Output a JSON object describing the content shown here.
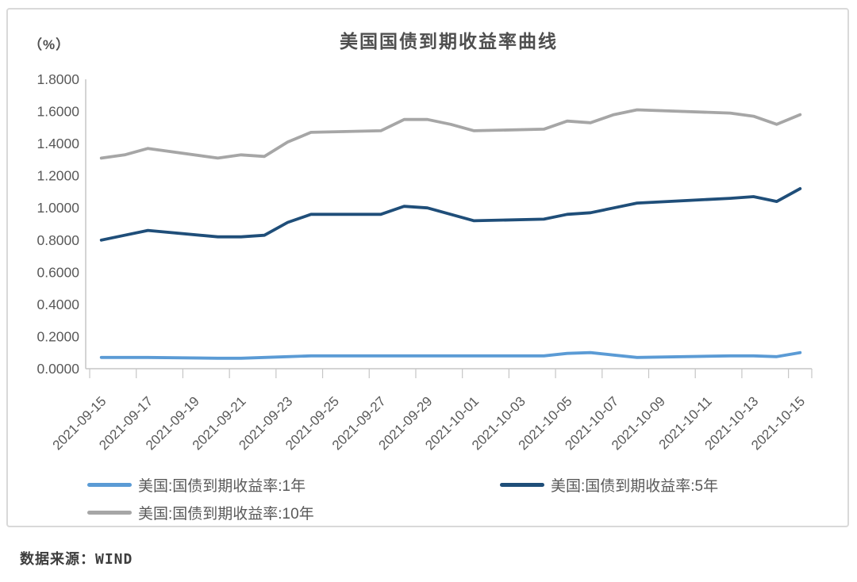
{
  "page": {
    "source_text": "数据来源：WIND"
  },
  "chart_data": {
    "type": "line",
    "title": "美国国债到期收益率曲线",
    "unit_label": "（%）",
    "grid": false,
    "legend_position": "bottom",
    "x_axis": {
      "start": "2021-09-15",
      "end": "2021-10-15",
      "tick_labels": [
        "2021-09-15",
        "2021-09-17",
        "2021-09-19",
        "2021-09-21",
        "2021-09-23",
        "2021-09-25",
        "2021-09-27",
        "2021-09-29",
        "2021-10-01",
        "2021-10-03",
        "2021-10-05",
        "2021-10-07",
        "2021-10-09",
        "2021-10-11",
        "2021-10-13",
        "2021-10-15"
      ]
    },
    "y_axis": {
      "min": 0.0,
      "max": 1.8,
      "step": 0.2,
      "tick_labels": [
        "0.0000",
        "0.2000",
        "0.4000",
        "0.6000",
        "0.8000",
        "1.0000",
        "1.2000",
        "1.4000",
        "1.6000",
        "1.8000"
      ]
    },
    "dates": [
      "2021-09-15",
      "2021-09-16",
      "2021-09-17",
      "2021-09-20",
      "2021-09-21",
      "2021-09-22",
      "2021-09-23",
      "2021-09-24",
      "2021-09-27",
      "2021-09-28",
      "2021-09-29",
      "2021-09-30",
      "2021-10-01",
      "2021-10-04",
      "2021-10-05",
      "2021-10-06",
      "2021-10-07",
      "2021-10-08",
      "2021-10-12",
      "2021-10-13",
      "2021-10-14",
      "2021-10-15"
    ],
    "series": [
      {
        "name": "美国:国债到期收益率:1年",
        "color": "#5b9bd5",
        "values": [
          0.07,
          0.07,
          0.07,
          0.065,
          0.065,
          0.07,
          0.075,
          0.08,
          0.08,
          0.08,
          0.08,
          0.08,
          0.08,
          0.08,
          0.095,
          0.1,
          0.085,
          0.07,
          0.08,
          0.08,
          0.075,
          0.1
        ]
      },
      {
        "name": "美国:国债到期收益率:5年",
        "color": "#1f4e79",
        "values": [
          0.8,
          0.83,
          0.86,
          0.82,
          0.82,
          0.83,
          0.91,
          0.96,
          0.96,
          1.01,
          1.0,
          0.96,
          0.92,
          0.93,
          0.96,
          0.97,
          1.0,
          1.03,
          1.06,
          1.07,
          1.04,
          1.12
        ]
      },
      {
        "name": "美国:国债到期收益率:10年",
        "color": "#a6a6a6",
        "values": [
          1.31,
          1.33,
          1.37,
          1.31,
          1.33,
          1.32,
          1.41,
          1.47,
          1.48,
          1.55,
          1.55,
          1.52,
          1.48,
          1.49,
          1.54,
          1.53,
          1.58,
          1.61,
          1.59,
          1.57,
          1.52,
          1.58
        ]
      }
    ]
  }
}
